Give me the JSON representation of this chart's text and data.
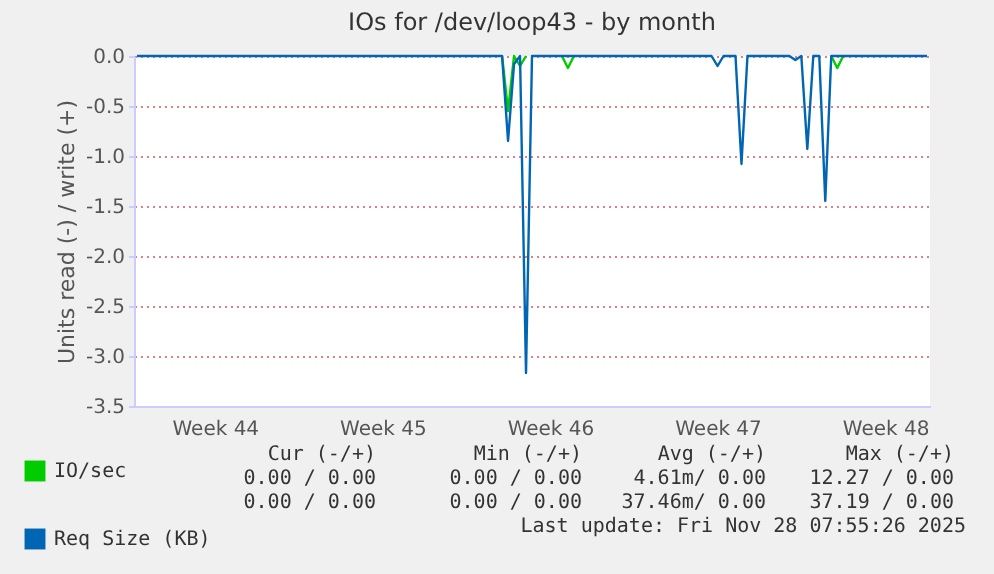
{
  "chart_data": {
    "type": "line",
    "title": "IOs for /dev/loop43 - by month",
    "ylabel": "Units read (-) / write (+)",
    "categories": [
      null,
      null,
      null,
      null,
      null,
      null,
      null,
      null,
      null,
      null,
      null,
      null,
      null,
      "Week 44",
      null,
      null,
      null,
      null,
      null,
      null,
      null,
      null,
      null,
      null,
      null,
      null,
      null,
      null,
      null,
      null,
      null,
      null,
      null,
      null,
      null,
      null,
      null,
      null,
      null,
      null,
      null,
      "Week 45",
      null,
      null,
      null,
      null,
      null,
      null,
      null,
      null,
      null,
      null,
      null,
      null,
      null,
      null,
      null,
      null,
      null,
      null,
      null,
      null,
      null,
      null,
      null,
      null,
      null,
      null,
      null,
      "Week 46",
      null,
      null,
      null,
      null,
      null,
      null,
      null,
      null,
      null,
      null,
      null,
      null,
      null,
      null,
      null,
      null,
      null,
      null,
      null,
      null,
      null,
      null,
      null,
      null,
      null,
      null,
      null,
      "Week 47",
      null,
      null,
      null,
      null,
      null,
      null,
      null,
      null,
      null,
      null,
      null,
      null,
      null,
      null,
      null,
      null,
      null,
      null,
      null,
      null,
      null,
      null,
      null,
      null,
      null,
      null,
      null,
      "Week 48",
      null,
      null,
      null,
      null,
      null,
      null,
      null
    ],
    "ylim": [
      -3.5,
      0
    ],
    "yticks": [
      {
        "value": 0,
        "label": "0.0"
      },
      {
        "value": -0.5,
        "label": "-0.5"
      },
      {
        "value": -1,
        "label": "-1.0"
      },
      {
        "value": -1.5,
        "label": "-1.5"
      },
      {
        "value": -2,
        "label": "-2.0"
      },
      {
        "value": -2.5,
        "label": "-2.5"
      },
      {
        "value": -3,
        "label": "-3.0"
      },
      {
        "value": -3.5,
        "label": "-3.5"
      }
    ],
    "grid": "y",
    "legend": "bottom left",
    "series": [
      {
        "name": "IO/sec",
        "color": "#00cc00",
        "values": [
          null,
          null,
          null,
          null,
          null,
          null,
          null,
          null,
          null,
          null,
          null,
          null,
          null,
          null,
          null,
          null,
          null,
          null,
          null,
          null,
          null,
          null,
          null,
          null,
          null,
          null,
          null,
          null,
          null,
          null,
          null,
          null,
          null,
          null,
          null,
          null,
          null,
          null,
          null,
          null,
          null,
          null,
          null,
          null,
          null,
          null,
          null,
          null,
          null,
          null,
          null,
          null,
          null,
          null,
          null,
          null,
          null,
          null,
          null,
          null,
          null,
          0,
          -0.55,
          0,
          -0.1,
          0,
          null,
          null,
          null,
          null,
          null,
          0,
          -0.12,
          0,
          null,
          null,
          null,
          null,
          null,
          null,
          null,
          null,
          null,
          null,
          null,
          null,
          null,
          null,
          null,
          null,
          null,
          null,
          null,
          null,
          null,
          null,
          null,
          null,
          null,
          null,
          null,
          null,
          null,
          null,
          null,
          null,
          null,
          null,
          null,
          null,
          null,
          null,
          null,
          null,
          null,
          null,
          0,
          -0.12,
          0,
          null,
          null,
          null,
          null,
          null,
          null,
          null,
          null,
          null,
          null,
          null,
          null,
          null,
          null
        ]
      },
      {
        "name": "Req Size (KB)",
        "color": "#0066b3",
        "values": [
          0,
          0,
          0,
          0,
          0,
          0,
          0,
          0,
          0,
          0,
          0,
          0,
          0,
          0,
          0,
          0,
          0,
          0,
          0,
          0,
          0,
          0,
          0,
          0,
          0,
          0,
          0,
          0,
          0,
          0,
          0,
          0,
          0,
          0,
          0,
          0,
          0,
          0,
          0,
          0,
          0,
          0,
          0,
          0,
          0,
          0,
          0,
          0,
          0,
          0,
          0,
          0,
          0,
          0,
          0,
          0,
          0,
          0,
          0,
          0,
          0,
          0,
          -0.85,
          -0.08,
          0,
          -3.17,
          0,
          0,
          0,
          0,
          0,
          0,
          0,
          0,
          0,
          0,
          0,
          0,
          0,
          0,
          0,
          0,
          0,
          0,
          0,
          0,
          0,
          0,
          0,
          0,
          0,
          0,
          0,
          0,
          0,
          0,
          0,
          -0.1,
          0,
          0,
          0,
          -1.08,
          0,
          0,
          0,
          0,
          0,
          0,
          0,
          0,
          -0.04,
          0,
          -0.93,
          0,
          0,
          -1.45,
          0,
          0,
          0,
          0,
          0,
          0,
          0,
          0,
          0,
          0,
          0,
          0,
          0,
          0,
          0,
          0,
          0
        ]
      }
    ],
    "annotations": [
      "Cur (-/+)",
      "Min (-/+)",
      "Avg (-/+)",
      "Max (-/+)",
      "0.00 / 0.00",
      "0.00 / 0.00",
      "4.61m/ 0.00",
      "12.27 / 0.00",
      "0.00 / 0.00",
      "0.00 / 0.00",
      "37.46m/ 0.00",
      "37.19 / 0.00",
      "Last update: Fri Nov 28 07:55:26 2025"
    ]
  }
}
